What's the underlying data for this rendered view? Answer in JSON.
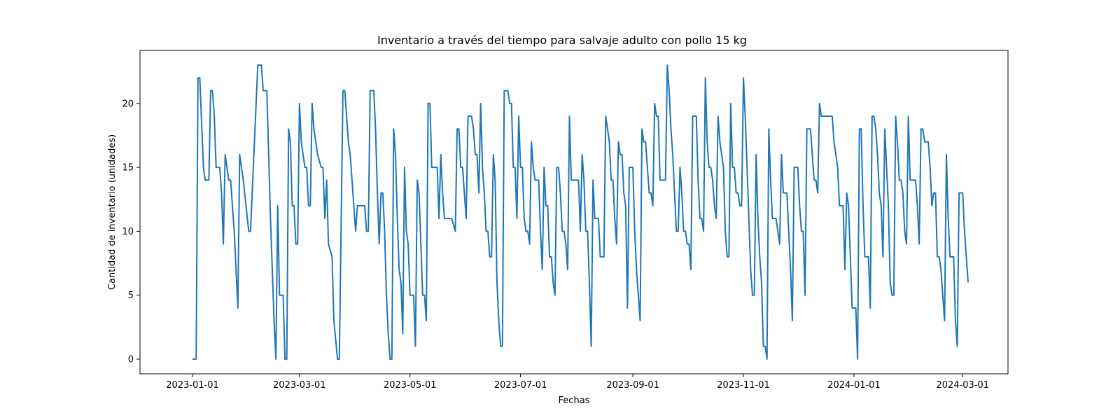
{
  "chart_data": {
    "type": "line",
    "title": "Inventario a través del tiempo para salvaje adulto con pollo 15 kg",
    "xlabel": "Fechas",
    "ylabel": "Cantidad de inventario (unidades)",
    "xlim": [
      "2022-12-03",
      "2024-03-26"
    ],
    "ylim": [
      -1.15,
      24.15
    ],
    "grid": false,
    "line_color": "#1f77b4",
    "x_ticks": [
      "2023-01-01",
      "2023-03-01",
      "2023-05-01",
      "2023-07-01",
      "2023-09-01",
      "2023-11-01",
      "2024-01-01",
      "2024-03-01"
    ],
    "y_ticks": [
      0,
      5,
      10,
      15,
      20
    ],
    "series": [
      {
        "x": [
          "2023-01-01",
          "2023-01-03",
          "2023-01-04",
          "2023-01-05",
          "2023-01-07",
          "2023-01-08",
          "2023-01-10",
          "2023-01-11",
          "2023-01-12",
          "2023-01-13",
          "2023-01-14",
          "2023-01-16",
          "2023-01-17",
          "2023-01-18",
          "2023-01-19",
          "2023-01-21",
          "2023-01-22",
          "2023-01-24",
          "2023-01-26",
          "2023-01-27",
          "2023-01-29",
          "2023-02-01",
          "2023-02-02",
          "2023-02-06",
          "2023-02-08",
          "2023-02-09",
          "2023-02-11",
          "2023-02-13",
          "2023-02-15",
          "2023-02-16",
          "2023-02-17",
          "2023-02-18",
          "2023-02-20",
          "2023-02-21",
          "2023-02-22",
          "2023-02-23",
          "2023-02-24",
          "2023-02-25",
          "2023-02-26",
          "2023-02-27",
          "2023-02-28",
          "2023-03-01",
          "2023-03-02",
          "2023-03-04",
          "2023-03-05",
          "2023-03-06",
          "2023-03-07",
          "2023-03-08",
          "2023-03-09",
          "2023-03-11",
          "2023-03-13",
          "2023-03-14",
          "2023-03-15",
          "2023-03-16",
          "2023-03-17",
          "2023-03-19",
          "2023-03-20",
          "2023-03-22",
          "2023-03-23",
          "2023-03-25",
          "2023-03-26",
          "2023-03-27",
          "2023-03-28",
          "2023-03-29",
          "2023-04-01",
          "2023-04-02",
          "2023-04-03",
          "2023-04-05",
          "2023-04-06",
          "2023-04-07",
          "2023-04-08",
          "2023-04-09",
          "2023-04-11",
          "2023-04-12",
          "2023-04-13",
          "2023-04-14",
          "2023-04-15",
          "2023-04-16",
          "2023-04-17",
          "2023-04-18",
          "2023-04-19",
          "2023-04-20",
          "2023-04-21",
          "2023-04-22",
          "2023-04-23",
          "2023-04-24",
          "2023-04-25",
          "2023-04-26",
          "2023-04-27",
          "2023-04-28",
          "2023-04-29",
          "2023-04-30",
          "2023-05-01",
          "2023-05-02",
          "2023-05-03",
          "2023-05-04",
          "2023-05-05",
          "2023-05-06",
          "2023-05-07",
          "2023-05-08",
          "2023-05-09",
          "2023-05-10",
          "2023-05-11",
          "2023-05-12",
          "2023-05-13",
          "2023-05-14",
          "2023-05-16",
          "2023-05-17",
          "2023-05-18",
          "2023-05-19",
          "2023-05-20",
          "2023-05-21",
          "2023-05-23",
          "2023-05-24",
          "2023-05-26",
          "2023-05-27",
          "2023-05-28",
          "2023-05-29",
          "2023-05-30",
          "2023-05-31",
          "2023-06-01",
          "2023-06-02",
          "2023-06-03",
          "2023-06-04",
          "2023-06-05",
          "2023-06-06",
          "2023-06-07",
          "2023-06-08",
          "2023-06-09",
          "2023-06-10",
          "2023-06-11",
          "2023-06-12",
          "2023-06-13",
          "2023-06-14",
          "2023-06-15",
          "2023-06-16",
          "2023-06-17",
          "2023-06-18",
          "2023-06-19",
          "2023-06-20",
          "2023-06-21",
          "2023-06-22",
          "2023-06-24",
          "2023-06-25",
          "2023-06-26",
          "2023-06-27",
          "2023-06-28",
          "2023-06-29",
          "2023-06-30",
          "2023-07-01",
          "2023-07-02",
          "2023-07-03",
          "2023-07-04",
          "2023-07-05",
          "2023-07-06",
          "2023-07-07",
          "2023-07-08",
          "2023-07-09",
          "2023-07-10",
          "2023-07-11",
          "2023-07-12",
          "2023-07-13",
          "2023-07-14",
          "2023-07-15",
          "2023-07-16",
          "2023-07-17",
          "2023-07-18",
          "2023-07-19",
          "2023-07-20",
          "2023-07-21",
          "2023-07-22",
          "2023-07-23",
          "2023-07-24",
          "2023-07-25",
          "2023-07-26",
          "2023-07-27",
          "2023-07-28",
          "2023-07-29",
          "2023-07-30",
          "2023-07-31",
          "2023-08-01",
          "2023-08-02",
          "2023-08-03",
          "2023-08-04",
          "2023-08-05",
          "2023-08-06",
          "2023-08-07",
          "2023-08-08",
          "2023-08-09",
          "2023-08-10",
          "2023-08-11",
          "2023-08-12",
          "2023-08-13",
          "2023-08-14",
          "2023-08-15",
          "2023-08-16",
          "2023-08-17",
          "2023-08-18",
          "2023-08-19",
          "2023-08-20",
          "2023-08-21",
          "2023-08-22",
          "2023-08-23",
          "2023-08-24",
          "2023-08-25",
          "2023-08-26",
          "2023-08-27",
          "2023-08-28",
          "2023-08-29",
          "2023-08-30",
          "2023-08-31",
          "2023-09-01",
          "2023-09-02",
          "2023-09-03",
          "2023-09-04",
          "2023-09-05",
          "2023-09-06",
          "2023-09-07",
          "2023-09-08",
          "2023-09-09",
          "2023-09-10",
          "2023-09-11",
          "2023-09-12",
          "2023-09-13",
          "2023-09-14",
          "2023-09-15",
          "2023-09-16",
          "2023-09-17",
          "2023-09-18",
          "2023-09-19",
          "2023-09-20",
          "2023-09-21",
          "2023-09-22",
          "2023-09-23",
          "2023-09-24",
          "2023-09-25",
          "2023-09-26",
          "2023-09-27",
          "2023-09-28",
          "2023-09-29",
          "2023-09-30",
          "2023-10-01",
          "2023-10-02",
          "2023-10-03",
          "2023-10-04",
          "2023-10-05",
          "2023-10-06",
          "2023-10-07",
          "2023-10-08",
          "2023-10-09",
          "2023-10-10",
          "2023-10-11",
          "2023-10-12",
          "2023-10-13",
          "2023-10-14",
          "2023-10-15",
          "2023-10-16",
          "2023-10-17",
          "2023-10-18",
          "2023-10-19",
          "2023-10-20",
          "2023-10-21",
          "2023-10-22",
          "2023-10-23",
          "2023-10-24",
          "2023-10-25",
          "2023-10-26",
          "2023-10-27",
          "2023-10-28",
          "2023-10-29",
          "2023-10-30",
          "2023-10-31",
          "2023-11-01",
          "2023-11-02",
          "2023-11-03",
          "2023-11-04",
          "2023-11-05",
          "2023-11-06",
          "2023-11-07",
          "2023-11-08",
          "2023-11-09",
          "2023-11-10",
          "2023-11-11",
          "2023-11-12",
          "2023-11-13",
          "2023-11-14",
          "2023-11-15",
          "2023-11-16",
          "2023-11-17",
          "2023-11-18",
          "2023-11-19",
          "2023-11-20",
          "2023-11-21",
          "2023-11-22",
          "2023-11-23",
          "2023-11-24",
          "2023-11-25",
          "2023-11-26",
          "2023-11-27",
          "2023-11-28",
          "2023-11-29",
          "2023-11-30",
          "2023-12-01",
          "2023-12-02",
          "2023-12-03",
          "2023-12-04",
          "2023-12-05",
          "2023-12-06",
          "2023-12-07",
          "2023-12-08",
          "2023-12-09",
          "2023-12-10",
          "2023-12-11",
          "2023-12-12",
          "2023-12-13",
          "2023-12-14",
          "2023-12-15",
          "2023-12-16",
          "2023-12-17",
          "2023-12-18",
          "2023-12-19",
          "2023-12-20",
          "2023-12-21",
          "2023-12-22",
          "2023-12-23",
          "2023-12-24",
          "2023-12-25",
          "2023-12-26",
          "2023-12-27",
          "2023-12-28",
          "2023-12-29",
          "2023-12-30",
          "2023-12-31",
          "2024-01-01",
          "2024-01-02",
          "2024-01-03",
          "2024-01-04",
          "2024-01-05",
          "2024-01-06",
          "2024-01-07",
          "2024-01-08",
          "2024-01-09",
          "2024-01-10",
          "2024-01-11",
          "2024-01-12",
          "2024-01-13",
          "2024-01-14",
          "2024-01-15",
          "2024-01-16",
          "2024-01-17",
          "2024-01-18",
          "2024-01-19",
          "2024-01-20",
          "2024-01-21",
          "2024-01-22",
          "2024-01-23",
          "2024-01-24",
          "2024-01-25",
          "2024-01-26",
          "2024-01-27",
          "2024-01-28",
          "2024-01-29",
          "2024-01-30",
          "2024-01-31",
          "2024-02-01",
          "2024-02-02",
          "2024-02-03",
          "2024-02-04",
          "2024-02-05",
          "2024-02-06",
          "2024-02-07",
          "2024-02-08",
          "2024-02-09",
          "2024-02-10",
          "2024-02-11",
          "2024-02-12",
          "2024-02-13",
          "2024-02-14",
          "2024-02-15",
          "2024-02-16",
          "2024-02-17",
          "2024-02-18",
          "2024-02-19",
          "2024-02-20",
          "2024-02-21",
          "2024-02-22",
          "2024-02-23",
          "2024-02-24",
          "2024-02-25",
          "2024-02-26",
          "2024-02-27",
          "2024-02-28",
          "2024-02-29",
          "2024-03-01",
          "2024-03-02",
          "2024-03-03",
          "2024-03-04"
        ],
        "values": [
          0,
          0,
          22,
          22,
          15,
          14,
          14,
          21,
          21,
          19,
          15,
          15,
          13,
          9,
          16,
          14,
          14,
          10,
          4,
          16,
          14,
          10,
          10,
          23,
          23,
          21,
          21,
          11,
          3,
          0,
          12,
          5,
          5,
          0,
          0,
          18,
          17,
          12,
          12,
          9,
          9,
          20,
          17,
          15,
          15,
          12,
          12,
          20,
          18,
          16,
          15,
          15,
          11,
          14,
          9,
          8,
          3,
          0,
          0,
          21,
          21,
          19,
          17,
          16,
          10,
          12,
          12,
          12,
          12,
          10,
          10,
          21,
          21,
          18,
          13,
          9,
          13,
          13,
          10,
          5,
          2,
          0,
          0,
          18,
          16,
          11,
          7,
          6,
          2,
          15,
          10,
          9,
          5,
          5,
          5,
          1,
          14,
          13,
          9,
          5,
          5,
          3,
          20,
          20,
          15,
          15,
          15,
          11,
          16,
          13,
          11,
          11,
          11,
          11,
          10,
          18,
          18,
          15,
          15,
          13,
          11,
          19,
          19,
          19,
          18,
          16,
          16,
          13,
          20,
          15,
          13,
          10,
          10,
          8,
          8,
          16,
          14,
          6,
          3,
          1,
          1,
          21,
          21,
          20,
          20,
          15,
          15,
          11,
          19,
          15,
          15,
          11,
          10,
          10,
          9,
          17,
          15,
          14,
          14,
          14,
          10,
          7,
          15,
          12,
          12,
          8,
          8,
          6,
          5,
          15,
          15,
          13,
          10,
          10,
          9,
          7,
          19,
          14,
          14,
          14,
          14,
          14,
          10,
          16,
          14,
          10,
          10,
          6,
          1,
          14,
          11,
          11,
          11,
          8,
          8,
          8,
          19,
          18,
          17,
          14,
          14,
          11,
          9,
          17,
          16,
          16,
          13,
          12,
          4,
          15,
          15,
          15,
          10,
          7,
          5,
          3,
          18,
          17,
          17,
          15,
          13,
          13,
          12,
          20,
          19,
          19,
          14,
          14,
          14,
          14,
          23,
          21,
          18,
          16,
          13,
          10,
          10,
          15,
          13,
          10,
          10,
          9,
          9,
          7,
          19,
          19,
          19,
          14,
          11,
          11,
          10,
          22,
          17,
          15,
          15,
          14,
          12,
          11,
          19,
          17,
          16,
          15,
          10,
          8,
          8,
          20,
          15,
          15,
          13,
          13,
          12,
          12,
          22,
          19,
          15,
          11,
          7,
          5,
          5,
          16,
          11,
          8,
          6,
          1,
          1,
          0,
          18,
          14,
          11,
          11,
          11,
          10,
          9,
          16,
          13,
          13,
          13,
          10,
          7,
          3,
          15,
          15,
          15,
          12,
          10,
          10,
          5,
          18,
          18,
          18,
          16,
          14,
          14,
          13,
          20,
          19,
          19,
          19,
          19,
          19,
          19,
          19,
          17,
          16,
          15,
          12,
          12,
          12,
          7,
          13,
          12,
          8,
          4,
          4,
          4,
          0,
          18,
          18,
          12,
          8,
          8,
          8,
          4,
          19,
          19,
          18,
          16,
          13,
          12,
          8,
          18,
          15,
          12,
          6,
          5,
          5,
          19,
          17,
          14,
          14,
          13,
          10,
          9,
          19,
          14,
          14,
          14,
          14,
          12,
          9,
          18,
          18,
          17,
          17,
          17,
          15,
          12,
          13,
          13,
          8,
          8,
          7,
          5,
          3,
          16,
          11,
          8,
          8,
          8,
          3,
          1,
          13,
          13,
          13,
          10,
          8,
          6
        ]
      }
    ]
  }
}
